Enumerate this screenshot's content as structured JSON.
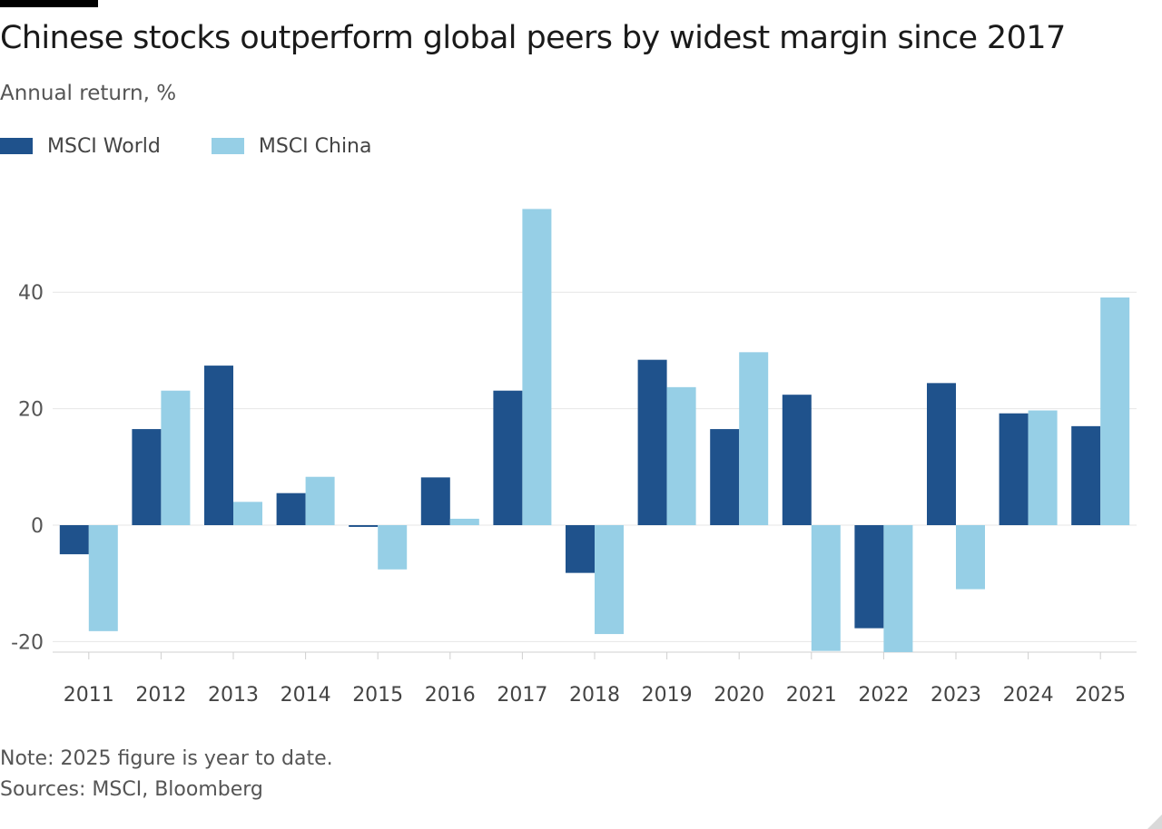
{
  "title": "Chinese stocks outperform global peers by widest margin since 2017",
  "subtitle": "Annual return, %",
  "note": "Note: 2025 figure is year to date.",
  "source": "Sources: MSCI, Bloomberg",
  "legend": [
    {
      "name": "MSCI World",
      "color": "#1f528c"
    },
    {
      "name": "MSCI China",
      "color": "#96cfe6"
    }
  ],
  "chart_data": {
    "type": "bar",
    "categories": [
      "2011",
      "2012",
      "2013",
      "2014",
      "2015",
      "2016",
      "2017",
      "2018",
      "2019",
      "2020",
      "2021",
      "2022",
      "2023",
      "2024",
      "2025"
    ],
    "series": [
      {
        "name": "MSCI World",
        "color": "#1f528c",
        "values": [
          -5,
          16.5,
          27.4,
          5.5,
          -0.3,
          8.2,
          23.1,
          -8.2,
          28.4,
          16.5,
          22.4,
          -17.7,
          24.4,
          19.2,
          17.0
        ]
      },
      {
        "name": "MSCI China",
        "color": "#96cfe6",
        "values": [
          -18.2,
          23.1,
          4.0,
          8.3,
          -7.6,
          1.1,
          54.3,
          -18.7,
          23.7,
          29.7,
          -21.6,
          -21.8,
          -11.0,
          19.7,
          39.1
        ]
      }
    ],
    "yticks": [
      -20,
      0,
      20,
      40
    ],
    "ylim": [
      -22,
      58
    ],
    "grid": true
  }
}
